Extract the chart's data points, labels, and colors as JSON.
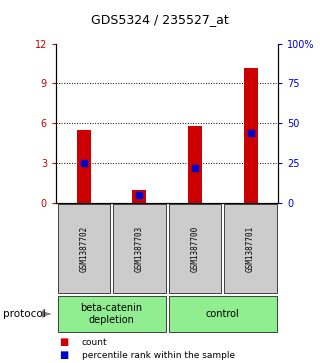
{
  "title": "GDS5324 / 235527_at",
  "samples": [
    "GSM1387702",
    "GSM1387703",
    "GSM1387700",
    "GSM1387701"
  ],
  "count_values": [
    5.5,
    1.0,
    5.8,
    10.2
  ],
  "percentile_values": [
    25,
    5,
    22,
    44
  ],
  "bar_color": "#cc0000",
  "marker_color": "#0000cc",
  "ylim_left": [
    0,
    12
  ],
  "ylim_right": [
    0,
    100
  ],
  "yticks_left": [
    0,
    3,
    6,
    9,
    12
  ],
  "ytick_labels_left": [
    "0",
    "3",
    "6",
    "9",
    "12"
  ],
  "yticks_right": [
    0,
    25,
    50,
    75,
    100
  ],
  "ytick_labels_right": [
    "0",
    "25",
    "50",
    "75",
    "100%"
  ],
  "group_info": [
    {
      "label": "beta-catenin\ndepletion",
      "start": 0,
      "end": 1,
      "color": "#90ee90"
    },
    {
      "label": "control",
      "start": 2,
      "end": 3,
      "color": "#90ee90"
    }
  ],
  "protocol_label": "protocol",
  "sample_box_color": "#cccccc",
  "background_color": "#ffffff",
  "bar_width": 0.25,
  "legend_items": [
    {
      "color": "#cc0000",
      "label": "count"
    },
    {
      "color": "#0000cc",
      "label": "percentile rank within the sample"
    }
  ]
}
